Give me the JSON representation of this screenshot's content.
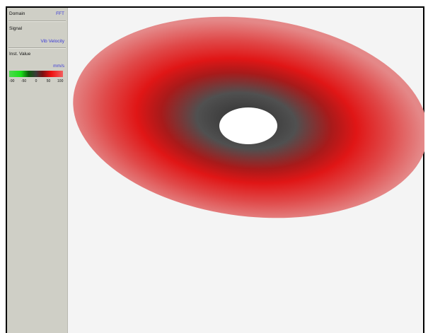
{
  "panel": {
    "domain_label": "Domain",
    "domain_value": "FFT",
    "signal_label": "Signal",
    "signal_value": "Vib Velocity",
    "inst_label": "Inst. Value",
    "unit_value": "mm/s",
    "scale_ticks": [
      "-90",
      "-50",
      "0",
      "50",
      "100"
    ]
  },
  "colors": {
    "panel_bg": "#cfcfc6",
    "value_text": "#3a3ad8",
    "disc_outer": "#e27a7a",
    "disc_mid": "#e01818",
    "disc_inner": "#3a3a3a"
  }
}
